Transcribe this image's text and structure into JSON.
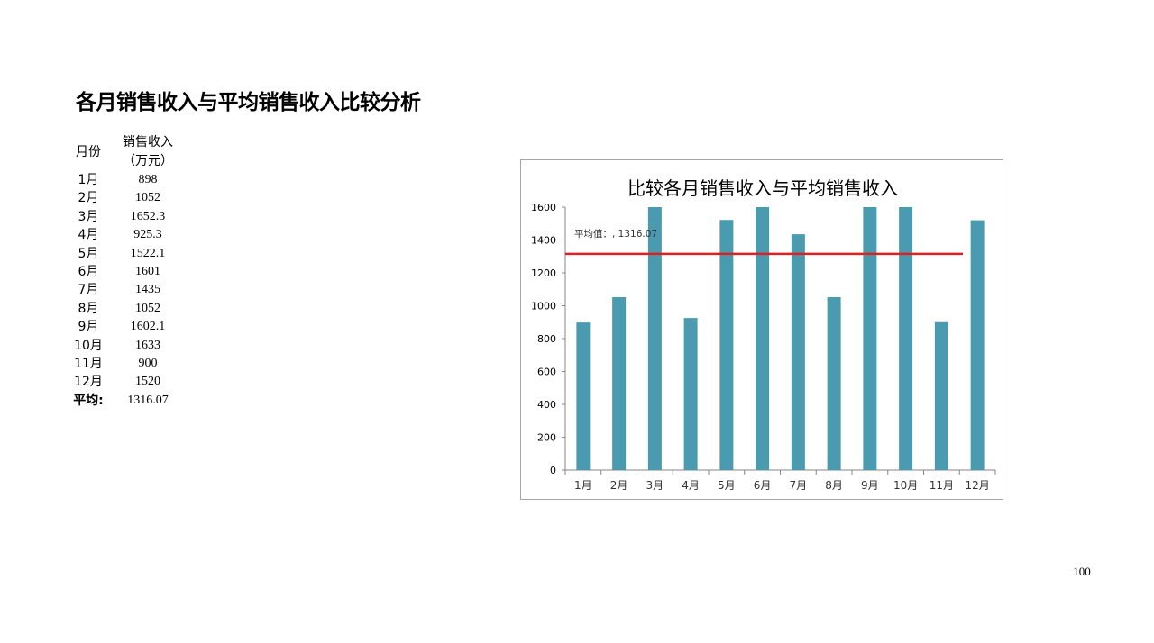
{
  "page": {
    "title": "各月销售收入与平均销售收入比较分析",
    "page_number": "100"
  },
  "table": {
    "header_month": "月份",
    "header_sales_line1": "销售收入",
    "header_sales_line2": "（万元）",
    "rows": [
      {
        "month": "1月",
        "value": "898"
      },
      {
        "month": "2月",
        "value": "1052"
      },
      {
        "month": "3月",
        "value": "1652.3"
      },
      {
        "month": "4月",
        "value": "925.3"
      },
      {
        "month": "5月",
        "value": "1522.1"
      },
      {
        "month": "6月",
        "value": "1601"
      },
      {
        "month": "7月",
        "value": "1435"
      },
      {
        "month": "8月",
        "value": "1052"
      },
      {
        "month": "9月",
        "value": "1602.1"
      },
      {
        "month": "10月",
        "value": "1633"
      },
      {
        "month": "11月",
        "value": "900"
      },
      {
        "month": "12月",
        "value": "1520"
      }
    ],
    "avg_label": "平均:",
    "avg_value": "1316.07"
  },
  "chart_data": {
    "type": "bar",
    "title": "比较各月销售收入与平均销售收入",
    "categories": [
      "1月",
      "2月",
      "3月",
      "4月",
      "5月",
      "6月",
      "7月",
      "8月",
      "9月",
      "10月",
      "11月",
      "12月"
    ],
    "series": [
      {
        "values": [
          898,
          1052,
          1652.3,
          925.3,
          1522.1,
          1601,
          1435,
          1052,
          1602.1,
          1633,
          900,
          1520
        ],
        "color": "#4a9bb0"
      }
    ],
    "average_line": {
      "value": 1316.07,
      "label": "平均值：, 1316.07",
      "color": "#e02020"
    },
    "ylim": [
      0,
      1600
    ],
    "yticks": [
      0,
      200,
      400,
      600,
      800,
      1000,
      1200,
      1400,
      1600
    ],
    "xlabel": "",
    "ylabel": "",
    "grid": false
  }
}
